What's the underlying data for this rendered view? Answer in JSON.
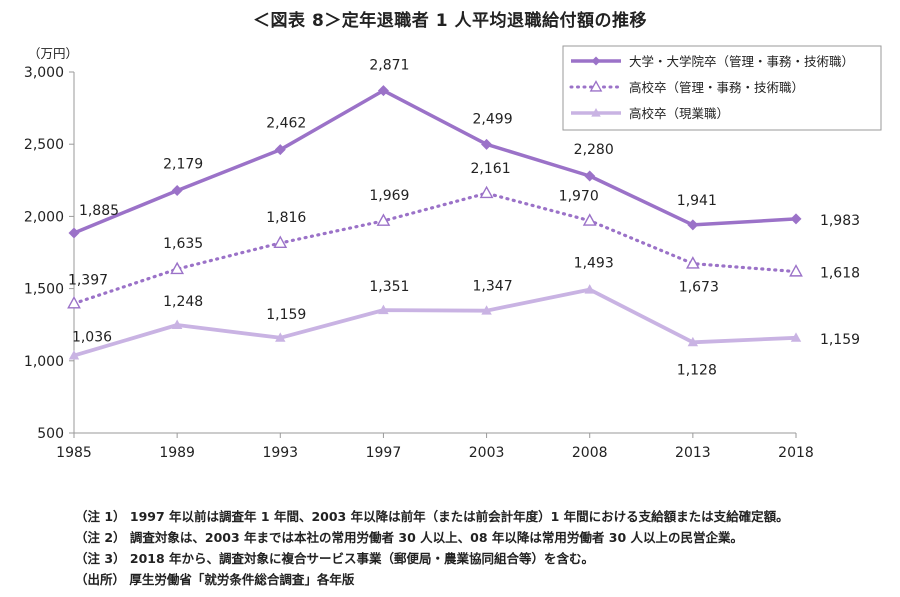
{
  "chart_data": {
    "type": "line",
    "title": "＜図表 8＞定年退職者 1 人平均退職給付額の推移",
    "unit_label": "（万円）",
    "categories": [
      "1985",
      "1989",
      "1993",
      "1997",
      "2003",
      "2008",
      "2013",
      "2018"
    ],
    "yticks": [
      "3,000",
      "2,500",
      "2,000",
      "1,500",
      "1,000",
      "500"
    ],
    "ylim": [
      500,
      3000
    ],
    "grid": false,
    "legend_position": "top-right",
    "series": [
      {
        "name": "大学・大学院卒（管理・事務・技術職）",
        "values": [
          1885,
          2179,
          2462,
          2871,
          2499,
          2280,
          1941,
          1983
        ],
        "labels": [
          "1,885",
          "2,179",
          "2,462",
          "2,871",
          "2,499",
          "2,280",
          "1,941",
          "1,983"
        ],
        "color": "#9b72c8",
        "style": "solid-diamond"
      },
      {
        "name": "高校卒（管理・事務・技術職）",
        "values": [
          1397,
          1635,
          1816,
          1969,
          2161,
          1970,
          1673,
          1618
        ],
        "labels": [
          "1,397",
          "1,635",
          "1,816",
          "1,969",
          "2,161",
          "1,970",
          "1,673",
          "1,618"
        ],
        "color": "#9b72c8",
        "style": "dotted-open-triangle"
      },
      {
        "name": "高校卒（現業職）",
        "values": [
          1036,
          1248,
          1159,
          1351,
          1347,
          1493,
          1128,
          1159
        ],
        "labels": [
          "1,036",
          "1,248",
          "1,159",
          "1,351",
          "1,347",
          "1,493",
          "1,128",
          "1,159"
        ],
        "color": "#c9b3e3",
        "style": "solid-triangle"
      }
    ]
  },
  "notes": [
    "（注 1） 1997 年以前は調査年 1 年間、2003 年以降は前年（または前会計年度）1 年間における支給額または支給確定額。",
    "（注 2） 調査対象は、2003 年までは本社の常用労働者 30 人以上、08 年以降は常用労働者 30 人以上の民営企業。",
    "（注 3） 2018 年から、調査対象に複合サービス事業（郵便局・農業協同組合等）を含む。",
    "（出所） 厚生労働省「就労条件総合調査」各年版"
  ]
}
